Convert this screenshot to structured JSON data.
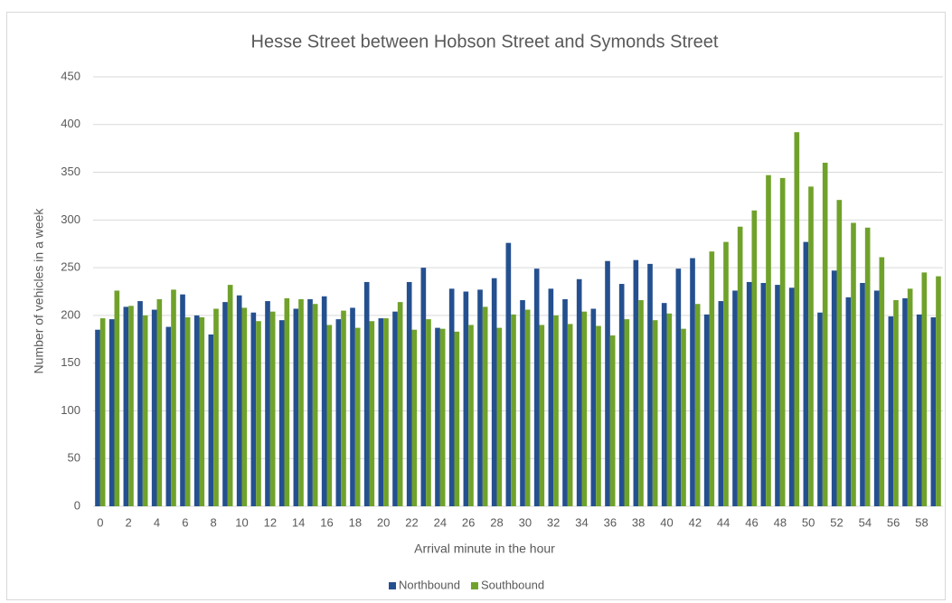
{
  "chart_data": {
    "type": "bar",
    "title": "Hesse Street between Hobson Street and Symonds Street",
    "x_label": "Arrival minute in the hour",
    "y_label": "Number of vehicles in a week",
    "categories": [
      0,
      null,
      2,
      null,
      4,
      null,
      6,
      null,
      8,
      null,
      10,
      null,
      12,
      null,
      14,
      null,
      16,
      null,
      18,
      null,
      20,
      null,
      22,
      null,
      24,
      null,
      26,
      null,
      28,
      null,
      30,
      null,
      32,
      null,
      34,
      null,
      36,
      null,
      38,
      null,
      40,
      null,
      42,
      null,
      44,
      null,
      46,
      null,
      48,
      null,
      50,
      null,
      52,
      null,
      54,
      null,
      56,
      null,
      58,
      null
    ],
    "series": [
      {
        "name": "Northbound",
        "color": "#25508f",
        "values": [
          185,
          196,
          209,
          215,
          206,
          188,
          222,
          200,
          180,
          214,
          221,
          203,
          215,
          195,
          207,
          217,
          220,
          196,
          208,
          235,
          197,
          204,
          235,
          250,
          187,
          228,
          225,
          227,
          239,
          276,
          216,
          249,
          228,
          217,
          238,
          207,
          257,
          233,
          258,
          254,
          213,
          249,
          260,
          201,
          215,
          226,
          235,
          234,
          232,
          229,
          277,
          203,
          247,
          219,
          234,
          226,
          199,
          218,
          201,
          198
        ]
      },
      {
        "name": "Southbound",
        "color": "#70a22b",
        "values": [
          197,
          226,
          210,
          200,
          217,
          227,
          198,
          198,
          207,
          232,
          208,
          194,
          204,
          218,
          217,
          212,
          190,
          205,
          187,
          194,
          197,
          214,
          185,
          196,
          186,
          183,
          190,
          209,
          187,
          201,
          206,
          190,
          200,
          191,
          204,
          189,
          179,
          196,
          216,
          195,
          202,
          186,
          212,
          267,
          277,
          293,
          310,
          347,
          344,
          392,
          335,
          360,
          321,
          297,
          292,
          261,
          216,
          228,
          245,
          241
        ]
      }
    ],
    "ylim": [
      0,
      450
    ],
    "yticks": [
      0,
      50,
      100,
      150,
      200,
      250,
      300,
      350,
      400,
      450
    ],
    "grid": true,
    "legend": "bottom"
  }
}
